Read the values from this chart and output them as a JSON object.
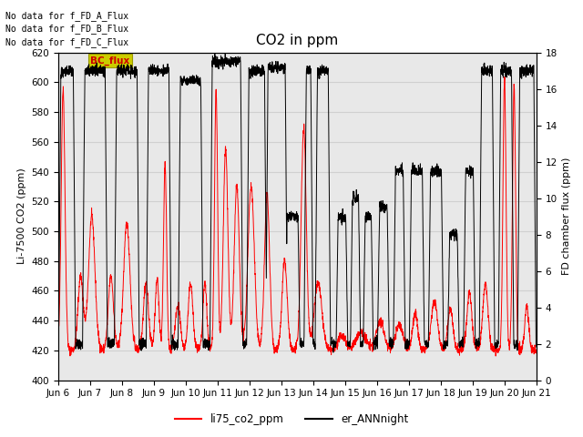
{
  "title": "CO2 in ppm",
  "ylabel_left": "Li-7500 CO2 (ppm)",
  "ylabel_right": "FD chamber flux (ppm)",
  "ylim_left": [
    400,
    620
  ],
  "ylim_right": [
    0,
    18
  ],
  "yticks_left": [
    400,
    420,
    440,
    460,
    480,
    500,
    520,
    540,
    560,
    580,
    600,
    620
  ],
  "yticks_right": [
    0,
    2,
    4,
    6,
    8,
    10,
    12,
    14,
    16,
    18
  ],
  "x_tick_labels": [
    "Jun 6",
    "Jun 7",
    "Jun 8",
    "Jun 9",
    "Jun 10",
    "Jun 11",
    "Jun 12",
    "Jun 13",
    "Jun 14",
    "Jun 15",
    "Jun 16",
    "Jun 17",
    "Jun 18",
    "Jun 19",
    "Jun 20",
    "Jun 21"
  ],
  "legend_labels": [
    "li75_co2_ppm",
    "er_ANNnight"
  ],
  "legend_colors": [
    "#ff0000",
    "#000000"
  ],
  "no_data_texts": [
    "No data for f_FD_A_Flux",
    "No data for f_FD_B_Flux",
    "No data for f_FD_C_Flux"
  ],
  "bc_flux_label": "BC_flux",
  "bc_flux_color": "#cc0000",
  "bc_flux_bg": "#cccc00",
  "grid_color": "#d0d0d0",
  "plot_bg": "#e8e8e8",
  "line_color_red": "#ff0000",
  "line_color_black": "#000000",
  "title_fontsize": 11,
  "label_fontsize": 8,
  "tick_fontsize": 7.5
}
